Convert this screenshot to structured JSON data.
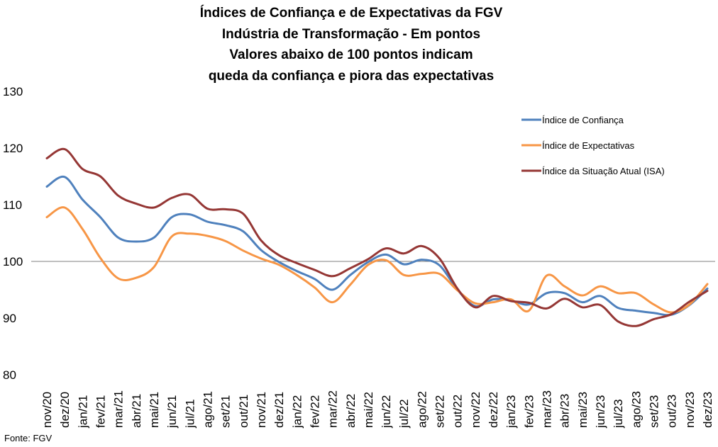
{
  "chart_data": {
    "type": "line",
    "title_lines": [
      "Índices de Confiança e de Expectativas da FGV",
      "Indústria de Transformação - Em pontos",
      "Valores abaixo de 100 pontos indicam",
      "queda da confiança e piora das expectativas"
    ],
    "categories": [
      "nov/20",
      "dez/20",
      "jan/21",
      "fev/21",
      "mar/21",
      "abr/21",
      "mai/21",
      "jun/21",
      "jul/21",
      "ago/21",
      "set/21",
      "out/21",
      "nov/21",
      "dez/21",
      "jan/22",
      "fev/22",
      "mar/22",
      "abr/22",
      "mai/22",
      "jun/22",
      "jul/22",
      "ago/22",
      "set/22",
      "out/22",
      "nov/22",
      "dez/22",
      "jan/23",
      "fev/23",
      "mar/23",
      "abr/23",
      "mai/23",
      "jun/23",
      "jul/23",
      "ago/23",
      "set/23",
      "out/23",
      "nov/23",
      "dez/23"
    ],
    "series": [
      {
        "name": "Índice de Confiança",
        "color": "#4F81BD",
        "values": [
          113.2,
          114.9,
          110.9,
          107.8,
          104.2,
          103.5,
          104.2,
          107.8,
          108.3,
          107.0,
          106.4,
          105.3,
          102.0,
          99.9,
          98.3,
          96.9,
          95.0,
          97.6,
          99.9,
          101.2,
          99.5,
          100.3,
          99.3,
          95.0,
          92.1,
          93.3,
          93.1,
          92.4,
          94.4,
          94.4,
          92.8,
          93.9,
          91.8,
          91.3,
          90.9,
          90.6,
          92.3,
          95.2
        ]
      },
      {
        "name": "Índice de Expectativas",
        "color": "#F79646",
        "values": [
          107.8,
          109.5,
          105.7,
          100.6,
          97.0,
          97.1,
          99.0,
          104.4,
          104.9,
          104.5,
          103.6,
          101.9,
          100.5,
          99.4,
          97.6,
          95.4,
          92.8,
          95.9,
          99.4,
          100.2,
          97.6,
          97.8,
          97.8,
          94.9,
          92.6,
          92.8,
          93.3,
          91.3,
          97.5,
          95.6,
          94.0,
          95.6,
          94.4,
          94.4,
          92.4,
          91.0,
          92.4,
          96.0
        ]
      },
      {
        "name": "Índice da Situação Atual (ISA)",
        "color": "#953735",
        "values": [
          118.2,
          119.8,
          116.3,
          115.0,
          111.6,
          110.2,
          109.5,
          111.2,
          111.8,
          109.3,
          109.2,
          108.4,
          103.7,
          101.1,
          99.7,
          98.5,
          97.4,
          98.8,
          100.4,
          102.3,
          101.4,
          102.7,
          100.5,
          95.2,
          91.9,
          93.9,
          93.0,
          92.7,
          91.7,
          93.4,
          91.9,
          92.3,
          89.4,
          88.6,
          89.8,
          90.7,
          92.9,
          94.8
        ]
      }
    ],
    "reference_line": 100,
    "y_ticks": [
      "80",
      "90",
      "100",
      "110",
      "120",
      "130"
    ],
    "ylim": [
      80,
      130
    ],
    "legend_position": "top-right",
    "grid": false
  },
  "source": "Fonte: FGV"
}
